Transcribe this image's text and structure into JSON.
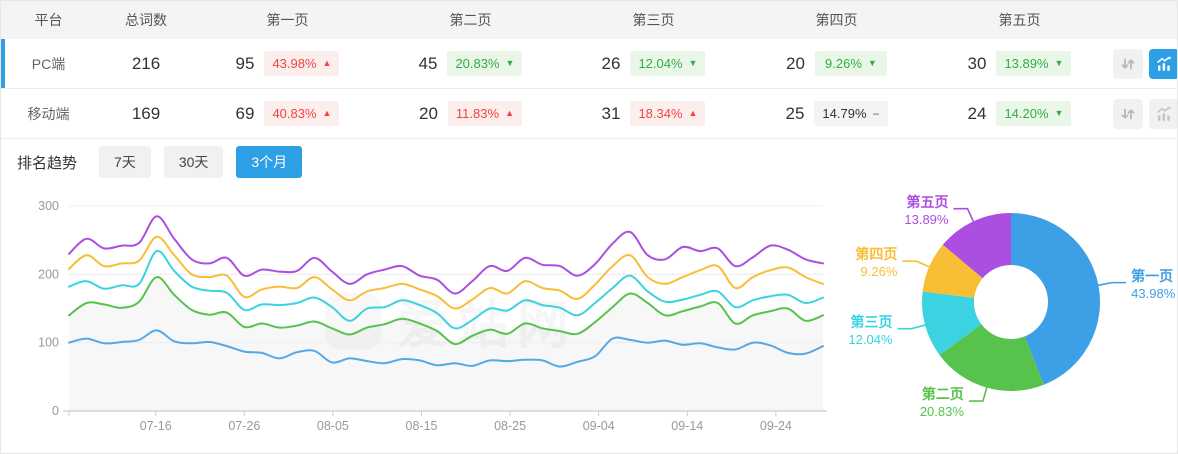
{
  "accent_color": "#2d9fe5",
  "table": {
    "headers": [
      "平台",
      "总词数",
      "第一页",
      "第二页",
      "第三页",
      "第四页",
      "第五页"
    ],
    "rows": [
      {
        "platform": "PC端",
        "total": "216",
        "selected": true,
        "pages": [
          {
            "count": "95",
            "pct": "43.98%",
            "dir": "up",
            "tone": "red"
          },
          {
            "count": "45",
            "pct": "20.83%",
            "dir": "down",
            "tone": "green"
          },
          {
            "count": "26",
            "pct": "12.04%",
            "dir": "down",
            "tone": "green"
          },
          {
            "count": "20",
            "pct": "9.26%",
            "dir": "down",
            "tone": "green"
          },
          {
            "count": "30",
            "pct": "13.89%",
            "dir": "down",
            "tone": "green"
          }
        ],
        "actions": {
          "sort": true,
          "trend_active": true
        }
      },
      {
        "platform": "移动端",
        "total": "169",
        "selected": false,
        "pages": [
          {
            "count": "69",
            "pct": "40.83%",
            "dir": "up",
            "tone": "red"
          },
          {
            "count": "20",
            "pct": "11.83%",
            "dir": "up",
            "tone": "red"
          },
          {
            "count": "31",
            "pct": "18.34%",
            "dir": "up",
            "tone": "red"
          },
          {
            "count": "25",
            "pct": "14.79%",
            "dir": "flat",
            "tone": "gray"
          },
          {
            "count": "24",
            "pct": "14.20%",
            "dir": "down",
            "tone": "green"
          }
        ],
        "actions": {
          "sort": true,
          "trend_active": false
        }
      }
    ]
  },
  "trend": {
    "title": "排名趋势",
    "ranges": [
      {
        "label": "7天",
        "active": false
      },
      {
        "label": "30天",
        "active": false
      },
      {
        "label": "3个月",
        "active": true
      }
    ],
    "watermark": "爱站网"
  },
  "chart_data": [
    {
      "type": "line",
      "ylim": [
        0,
        300
      ],
      "y_ticks": [
        0,
        100,
        200,
        300
      ],
      "x_ticks": [
        {
          "label": "07-16",
          "f": 0.115
        },
        {
          "label": "07-26",
          "f": 0.2325
        },
        {
          "label": "08-05",
          "f": 0.35
        },
        {
          "label": "08-15",
          "f": 0.4675
        },
        {
          "label": "08-25",
          "f": 0.585
        },
        {
          "label": "09-04",
          "f": 0.7025
        },
        {
          "label": "09-14",
          "f": 0.82
        },
        {
          "label": "09-24",
          "f": 0.9375
        }
      ],
      "grid": true,
      "legend": false,
      "series": [
        {
          "name": "blue-line-page1",
          "color": "#55a8e5",
          "area": false,
          "values": [
            100,
            106,
            99,
            101,
            104,
            118,
            102,
            99,
            101,
            95,
            87,
            85,
            77,
            86,
            88,
            71,
            77,
            73,
            70,
            76,
            74,
            67,
            70,
            66,
            74,
            73,
            75,
            74,
            65,
            72,
            80,
            106,
            104,
            100,
            103,
            97,
            99,
            93,
            90,
            100,
            96,
            85,
            84,
            95
          ]
        },
        {
          "name": "green-line-page2-cum",
          "color": "#57c24c",
          "area": true,
          "area_color": "#f7f7f7",
          "values": [
            140,
            158,
            156,
            151,
            160,
            196,
            170,
            148,
            141,
            144,
            123,
            128,
            122,
            125,
            131,
            121,
            112,
            122,
            127,
            135,
            128,
            117,
            98,
            110,
            119,
            113,
            128,
            121,
            117,
            113,
            130,
            152,
            172,
            158,
            140,
            146,
            153,
            158,
            128,
            140,
            146,
            150,
            132,
            140
          ]
        },
        {
          "name": "cyan-line-page3-cum",
          "color": "#3bd2e2",
          "area": false,
          "values": [
            182,
            190,
            179,
            184,
            186,
            234,
            205,
            182,
            176,
            173,
            148,
            156,
            155,
            158,
            166,
            152,
            132,
            150,
            152,
            162,
            155,
            143,
            121,
            133,
            150,
            147,
            162,
            155,
            151,
            140,
            158,
            180,
            198,
            175,
            160,
            163,
            170,
            175,
            152,
            162,
            168,
            170,
            158,
            166
          ]
        },
        {
          "name": "yellow-line-page4-cum",
          "color": "#f7be36",
          "area": false,
          "values": [
            208,
            228,
            212,
            216,
            220,
            255,
            228,
            200,
            196,
            198,
            167,
            178,
            182,
            180,
            196,
            178,
            162,
            175,
            180,
            186,
            178,
            168,
            150,
            163,
            180,
            172,
            190,
            180,
            176,
            164,
            185,
            212,
            228,
            196,
            186,
            196,
            206,
            212,
            180,
            196,
            206,
            210,
            196,
            186
          ]
        },
        {
          "name": "purple-line-page5-cum",
          "color": "#ac4fe0",
          "area": false,
          "values": [
            230,
            252,
            238,
            242,
            246,
            285,
            252,
            222,
            216,
            224,
            198,
            207,
            204,
            205,
            224,
            204,
            186,
            200,
            207,
            212,
            198,
            192,
            172,
            190,
            212,
            205,
            224,
            214,
            212,
            198,
            215,
            245,
            262,
            228,
            222,
            240,
            234,
            238,
            212,
            225,
            242,
            236,
            222,
            216
          ]
        }
      ]
    },
    {
      "type": "donut",
      "labels": [
        "第一页",
        "第二页",
        "第三页",
        "第四页",
        "第五页"
      ],
      "values": [
        43.98,
        20.83,
        12.04,
        9.26,
        13.89
      ],
      "colors": [
        "#3d9fe5",
        "#57c24c",
        "#3bd2e2",
        "#f7be36",
        "#ac4fe0"
      ],
      "inner_radius_ratio": 0.42,
      "label_style": "name and percent with leader lines"
    }
  ]
}
